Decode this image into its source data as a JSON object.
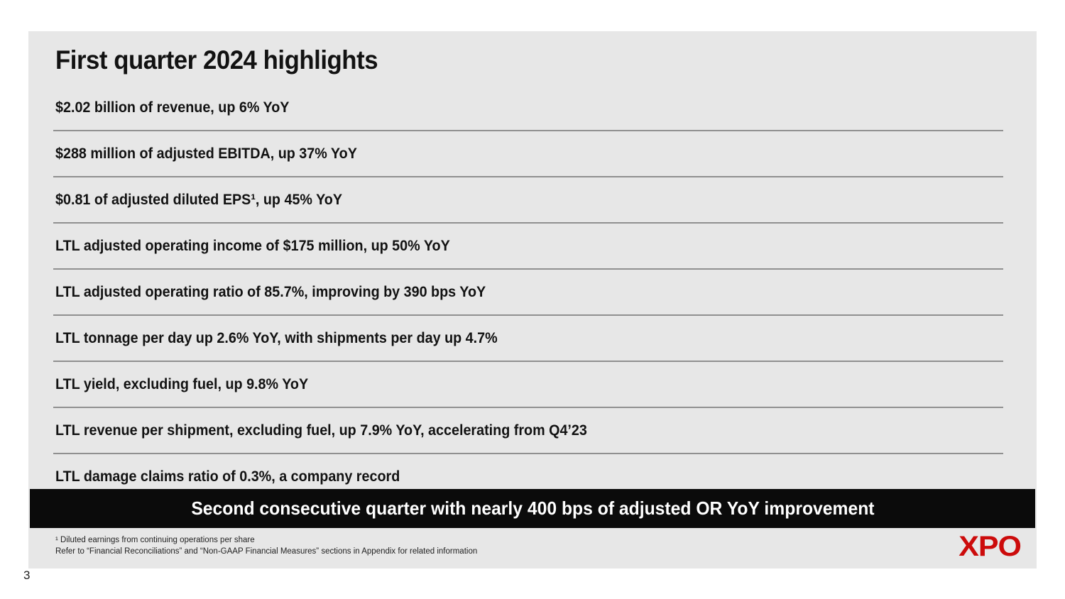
{
  "slide": {
    "title": "First quarter 2024 highlights",
    "highlights": [
      "$2.02 billion of revenue, up 6% YoY",
      "$288 million of adjusted EBITDA, up 37% YoY",
      "$0.81 of adjusted diluted EPS¹, up 45% YoY",
      "LTL adjusted operating income of $175 million, up 50% YoY",
      "LTL adjusted operating ratio of 85.7%, improving by 390 bps YoY",
      "LTL tonnage per day up 2.6% YoY, with shipments per day up 4.7%",
      "LTL yield, excluding fuel, up 9.8% YoY",
      "LTL revenue per shipment, excluding fuel, up 7.9% YoY, accelerating from Q4’23",
      "LTL damage claims ratio of 0.3%, a company record"
    ],
    "banner": "Second consecutive quarter with nearly 400 bps of adjusted OR YoY improvement",
    "footnotes": [
      "¹ Diluted earnings from continuing operations per share",
      "Refer to “Financial Reconciliations” and “Non-GAAP Financial Measures” sections in Appendix for related information"
    ],
    "logo": "XPO",
    "page_number": "3"
  },
  "colors": {
    "slide_background": "#e7e7e7",
    "banner_background": "#0b0b0b",
    "banner_text": "#ffffff",
    "logo_red": "#cc0b0b",
    "divider": "#909090",
    "text": "#121212"
  }
}
